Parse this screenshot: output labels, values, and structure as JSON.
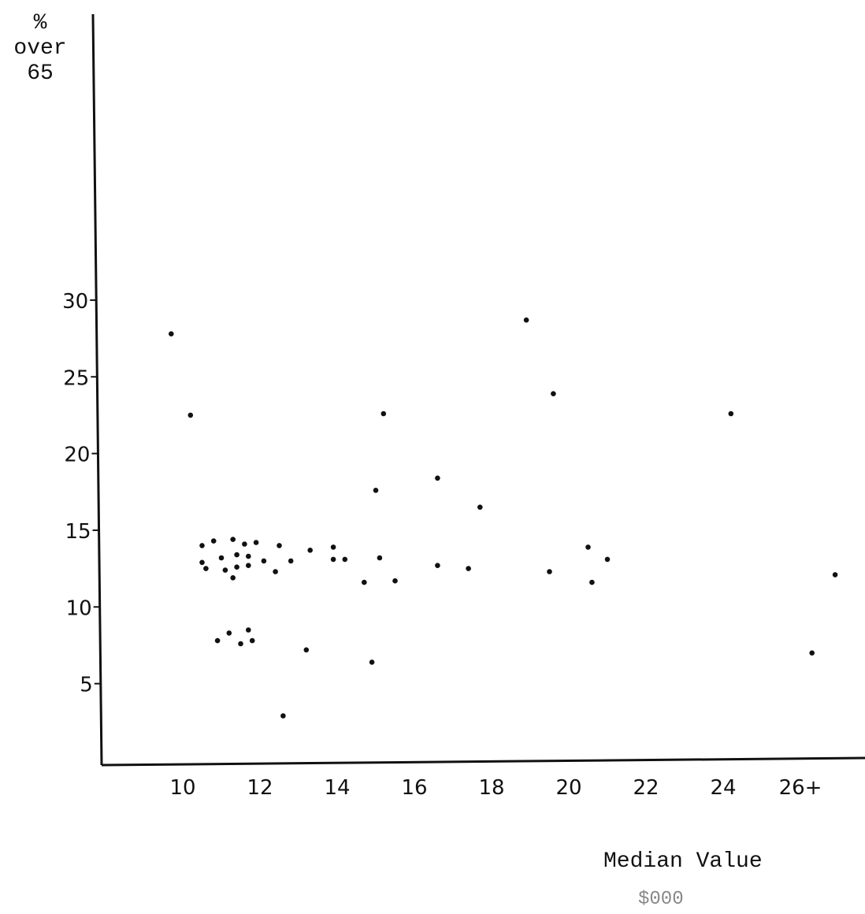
{
  "chart_data": {
    "type": "scatter",
    "ylabel_lines": [
      "%",
      "over",
      "65"
    ],
    "xlabel": "Median Value",
    "xlabel_unit": "$000",
    "x_ticks": [
      {
        "value": 10,
        "label": "10"
      },
      {
        "value": 12,
        "label": "12"
      },
      {
        "value": 14,
        "label": "14"
      },
      {
        "value": 16,
        "label": "16"
      },
      {
        "value": 18,
        "label": "18"
      },
      {
        "value": 20,
        "label": "20"
      },
      {
        "value": 22,
        "label": "22"
      },
      {
        "value": 24,
        "label": "24"
      },
      {
        "value": 26,
        "label": "26+"
      }
    ],
    "y_ticks": [
      {
        "value": 5,
        "label": "5"
      },
      {
        "value": 10,
        "label": "10"
      },
      {
        "value": 15,
        "label": "15"
      },
      {
        "value": 20,
        "label": "20"
      },
      {
        "value": 25,
        "label": "25"
      },
      {
        "value": 30,
        "label": "30"
      }
    ],
    "xlim": [
      8.0,
      27.3
    ],
    "ylim": [
      0,
      49
    ],
    "grid": false,
    "points": [
      [
        9.7,
        27.8
      ],
      [
        10.2,
        22.5
      ],
      [
        15.2,
        22.6
      ],
      [
        18.9,
        28.7
      ],
      [
        19.6,
        23.9
      ],
      [
        24.2,
        22.6
      ],
      [
        16.6,
        18.4
      ],
      [
        15.0,
        17.6
      ],
      [
        17.7,
        16.5
      ],
      [
        10.5,
        14.0
      ],
      [
        10.8,
        14.3
      ],
      [
        11.3,
        14.4
      ],
      [
        11.6,
        14.1
      ],
      [
        11.9,
        14.2
      ],
      [
        12.5,
        14.0
      ],
      [
        13.3,
        13.7
      ],
      [
        13.9,
        13.9
      ],
      [
        20.5,
        13.9
      ],
      [
        10.5,
        12.9
      ],
      [
        11.0,
        13.2
      ],
      [
        11.4,
        13.4
      ],
      [
        11.7,
        13.3
      ],
      [
        12.1,
        13.0
      ],
      [
        12.8,
        13.0
      ],
      [
        13.9,
        13.1
      ],
      [
        14.2,
        13.1
      ],
      [
        15.1,
        13.2
      ],
      [
        21.0,
        13.1
      ],
      [
        10.6,
        12.5
      ],
      [
        11.1,
        12.4
      ],
      [
        11.4,
        12.6
      ],
      [
        11.7,
        12.7
      ],
      [
        12.4,
        12.3
      ],
      [
        16.6,
        12.7
      ],
      [
        17.4,
        12.5
      ],
      [
        19.5,
        12.3
      ],
      [
        26.9,
        12.1
      ],
      [
        11.3,
        11.9
      ],
      [
        14.7,
        11.6
      ],
      [
        15.5,
        11.7
      ],
      [
        20.6,
        11.6
      ],
      [
        10.9,
        7.8
      ],
      [
        11.2,
        8.3
      ],
      [
        11.5,
        7.6
      ],
      [
        11.7,
        8.5
      ],
      [
        11.8,
        7.8
      ],
      [
        13.2,
        7.2
      ],
      [
        26.3,
        7.0
      ],
      [
        14.9,
        6.4
      ],
      [
        12.6,
        2.9
      ]
    ]
  }
}
